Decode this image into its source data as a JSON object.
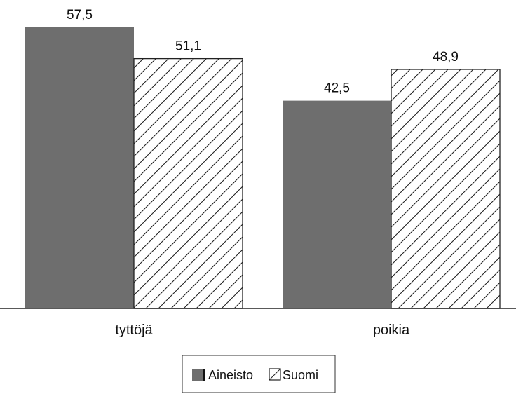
{
  "chart_data": {
    "type": "bar",
    "categories": [
      "tyttöjä",
      "poikia"
    ],
    "series": [
      {
        "name": "Aineisto",
        "values": [
          57.5,
          42.5
        ],
        "labels": [
          "57,5",
          "42,5"
        ],
        "color": "#6e6e6e",
        "pattern": "solid"
      },
      {
        "name": "Suomi",
        "values": [
          51.1,
          48.9
        ],
        "labels": [
          "51,1",
          "48,9"
        ],
        "color": "#ffffff",
        "pattern": "diagonal-hatch"
      }
    ],
    "title": "",
    "xlabel": "",
    "ylabel": "",
    "ylim": [
      0,
      57.5
    ],
    "grid": false,
    "legend": {
      "position": "bottom-center"
    }
  }
}
